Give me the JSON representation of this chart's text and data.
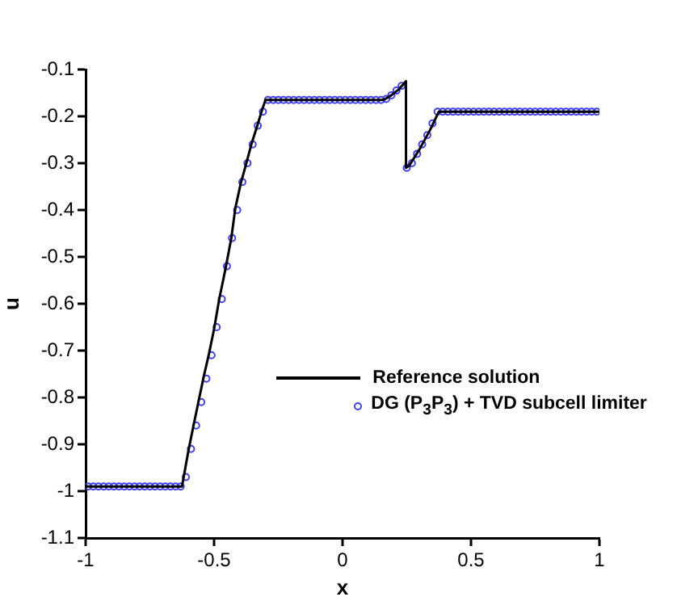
{
  "chart_data": {
    "type": "line",
    "xlabel": "x",
    "ylabel": "u",
    "xlim": [
      -1,
      1
    ],
    "ylim": [
      -1.1,
      -0.1
    ],
    "xticks": [
      -1,
      -0.5,
      0,
      0.5,
      1
    ],
    "yticks": [
      -1.1,
      -1,
      -0.9,
      -0.8,
      -0.7,
      -0.6,
      -0.5,
      -0.4,
      -0.3,
      -0.2,
      -0.1
    ],
    "grid": false,
    "legend": "right",
    "series": [
      {
        "name": "Reference solution",
        "type": "line",
        "color": "#000000",
        "marker": "none",
        "line_style": "solid",
        "x": [
          -1,
          -0.625,
          -0.6,
          -0.58,
          -0.56,
          -0.54,
          -0.52,
          -0.5,
          -0.48,
          -0.455,
          -0.433,
          -0.417,
          -0.396,
          -0.375,
          -0.355,
          -0.333,
          -0.313,
          -0.3,
          0.16,
          0.19,
          0.22,
          0.247,
          0.247,
          0.26,
          0.3,
          0.34,
          0.375,
          1
        ],
        "values": [
          -0.99,
          -0.99,
          -0.914,
          -0.86,
          -0.807,
          -0.755,
          -0.707,
          -0.654,
          -0.59,
          -0.524,
          -0.46,
          -0.395,
          -0.343,
          -0.301,
          -0.26,
          -0.222,
          -0.186,
          -0.165,
          -0.165,
          -0.155,
          -0.142,
          -0.125,
          -0.31,
          -0.305,
          -0.27,
          -0.23,
          -0.19,
          -0.19
        ]
      },
      {
        "name": "DG (P$_{3}$P$_{3}$) + TVD subcell limiter",
        "type": "scatter",
        "color": "#4040f0",
        "marker": "circle",
        "x": [
          -0.99,
          -0.97,
          -0.95,
          -0.93,
          -0.91,
          -0.89,
          -0.87,
          -0.85,
          -0.83,
          -0.81,
          -0.79,
          -0.77,
          -0.75,
          -0.73,
          -0.71,
          -0.69,
          -0.67,
          -0.65,
          -0.63,
          -0.61,
          -0.59,
          -0.57,
          -0.55,
          -0.53,
          -0.51,
          -0.49,
          -0.47,
          -0.45,
          -0.43,
          -0.41,
          -0.39,
          -0.37,
          -0.35,
          -0.33,
          -0.31,
          -0.29,
          -0.27,
          -0.25,
          -0.23,
          -0.21,
          -0.19,
          -0.17,
          -0.15,
          -0.13,
          -0.11,
          -0.09,
          -0.07,
          -0.05,
          -0.03,
          -0.01,
          0.01,
          0.03,
          0.05,
          0.07,
          0.09,
          0.11,
          0.13,
          0.15,
          0.17,
          0.19,
          0.21,
          0.23,
          0.25,
          0.27,
          0.29,
          0.31,
          0.33,
          0.35,
          0.37,
          0.39,
          0.41,
          0.43,
          0.45,
          0.47,
          0.49,
          0.51,
          0.53,
          0.55,
          0.57,
          0.59,
          0.61,
          0.63,
          0.65,
          0.67,
          0.69,
          0.71,
          0.73,
          0.75,
          0.77,
          0.79,
          0.81,
          0.83,
          0.85,
          0.87,
          0.89,
          0.91,
          0.93,
          0.95,
          0.97,
          0.99
        ],
        "values": [
          -0.99,
          -0.99,
          -0.99,
          -0.99,
          -0.99,
          -0.99,
          -0.99,
          -0.99,
          -0.99,
          -0.99,
          -0.99,
          -0.99,
          -0.99,
          -0.99,
          -0.99,
          -0.99,
          -0.99,
          -0.99,
          -0.99,
          -0.97,
          -0.91,
          -0.86,
          -0.81,
          -0.76,
          -0.71,
          -0.65,
          -0.59,
          -0.52,
          -0.46,
          -0.4,
          -0.34,
          -0.3,
          -0.26,
          -0.22,
          -0.19,
          -0.165,
          -0.165,
          -0.165,
          -0.165,
          -0.165,
          -0.165,
          -0.165,
          -0.165,
          -0.165,
          -0.165,
          -0.165,
          -0.165,
          -0.165,
          -0.165,
          -0.165,
          -0.165,
          -0.165,
          -0.165,
          -0.165,
          -0.165,
          -0.165,
          -0.165,
          -0.165,
          -0.163,
          -0.155,
          -0.145,
          -0.135,
          -0.31,
          -0.3,
          -0.28,
          -0.26,
          -0.24,
          -0.215,
          -0.19,
          -0.19,
          -0.19,
          -0.19,
          -0.19,
          -0.19,
          -0.19,
          -0.19,
          -0.19,
          -0.19,
          -0.19,
          -0.19,
          -0.19,
          -0.19,
          -0.19,
          -0.19,
          -0.19,
          -0.19,
          -0.19,
          -0.19,
          -0.19,
          -0.19,
          -0.19,
          -0.19,
          -0.19,
          -0.19,
          -0.19,
          -0.19,
          -0.19,
          -0.19,
          -0.19,
          -0.19
        ]
      }
    ]
  }
}
